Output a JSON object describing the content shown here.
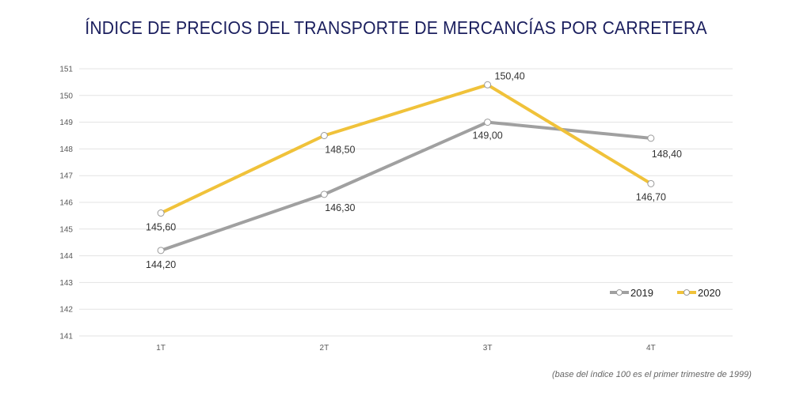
{
  "chart_data": {
    "type": "line",
    "title": "ÍNDICE DE PRECIOS DEL TRANSPORTE DE MERCANCÍAS POR CARRETERA",
    "xlabel": "",
    "ylabel": "",
    "categories": [
      "1T",
      "2T",
      "3T",
      "4T"
    ],
    "ylim": [
      141,
      151
    ],
    "yticks": [
      "141",
      "142",
      "143",
      "144",
      "145",
      "146",
      "147",
      "148",
      "149",
      "150",
      "151"
    ],
    "grid": true,
    "legend_position": "bottom-right",
    "series": [
      {
        "name": "2019",
        "color": "#a0a0a0",
        "values": [
          144.2,
          146.3,
          149.0,
          148.4
        ],
        "labels": [
          "144,20",
          "146,30",
          "149,00",
          "148,40"
        ]
      },
      {
        "name": "2020",
        "color": "#f0c23a",
        "values": [
          145.6,
          148.5,
          150.4,
          146.7
        ],
        "labels": [
          "145,60",
          "148,50",
          "150,40",
          "146,70"
        ]
      }
    ],
    "footnote": "(base del índice 100 es el primer trimestre de 1999)"
  }
}
